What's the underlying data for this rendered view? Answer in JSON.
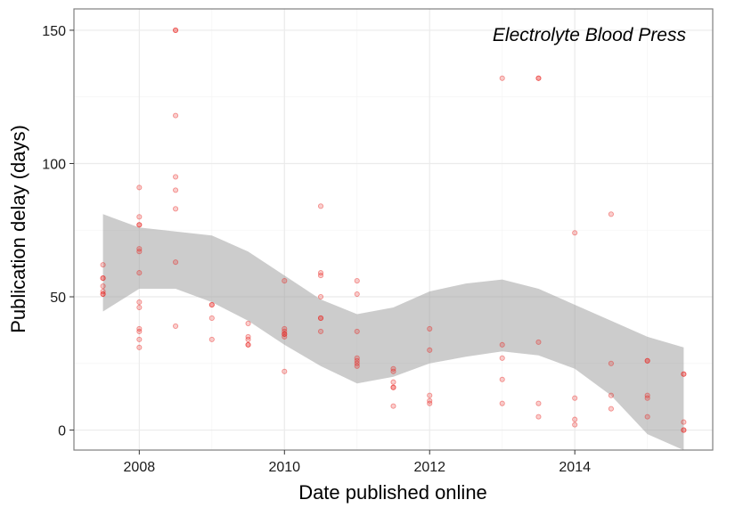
{
  "chart_data": {
    "type": "scatter",
    "title": "",
    "annotation": "Electrolyte Blood Press",
    "xlabel": "Date published online",
    "ylabel": "Publication delay (days)",
    "xlim": [
      2007.1,
      2015.9
    ],
    "ylim": [
      -7.5,
      158
    ],
    "x_ticks": [
      2008,
      2010,
      2012,
      2014
    ],
    "y_ticks": [
      0,
      50,
      100,
      150
    ],
    "grid": true,
    "legend": "none",
    "colors": {
      "points": "#e8211c",
      "ribbon": "#999999",
      "grid_major": "#ebebeb",
      "grid_minor": "#f5f5f5",
      "panel_border": "#7f7f7f"
    },
    "points": [
      {
        "x": 2007.5,
        "y": 62
      },
      {
        "x": 2007.5,
        "y": 57
      },
      {
        "x": 2007.5,
        "y": 57
      },
      {
        "x": 2007.5,
        "y": 54
      },
      {
        "x": 2007.5,
        "y": 52
      },
      {
        "x": 2007.5,
        "y": 51
      },
      {
        "x": 2007.5,
        "y": 51
      },
      {
        "x": 2008.0,
        "y": 91
      },
      {
        "x": 2008.0,
        "y": 80
      },
      {
        "x": 2008.0,
        "y": 77
      },
      {
        "x": 2008.0,
        "y": 77
      },
      {
        "x": 2008.0,
        "y": 68
      },
      {
        "x": 2008.0,
        "y": 67
      },
      {
        "x": 2008.0,
        "y": 59
      },
      {
        "x": 2008.0,
        "y": 48
      },
      {
        "x": 2008.0,
        "y": 46
      },
      {
        "x": 2008.0,
        "y": 38
      },
      {
        "x": 2008.0,
        "y": 37
      },
      {
        "x": 2008.0,
        "y": 34
      },
      {
        "x": 2008.0,
        "y": 31
      },
      {
        "x": 2008.5,
        "y": 150
      },
      {
        "x": 2008.5,
        "y": 150
      },
      {
        "x": 2008.5,
        "y": 118
      },
      {
        "x": 2008.5,
        "y": 95
      },
      {
        "x": 2008.5,
        "y": 90
      },
      {
        "x": 2008.5,
        "y": 83
      },
      {
        "x": 2008.5,
        "y": 63
      },
      {
        "x": 2008.5,
        "y": 39
      },
      {
        "x": 2009.0,
        "y": 47
      },
      {
        "x": 2009.0,
        "y": 47
      },
      {
        "x": 2009.0,
        "y": 42
      },
      {
        "x": 2009.0,
        "y": 34
      },
      {
        "x": 2009.5,
        "y": 40
      },
      {
        "x": 2009.5,
        "y": 35
      },
      {
        "x": 2009.5,
        "y": 34
      },
      {
        "x": 2009.5,
        "y": 32
      },
      {
        "x": 2009.5,
        "y": 32
      },
      {
        "x": 2010.0,
        "y": 56
      },
      {
        "x": 2010.0,
        "y": 38
      },
      {
        "x": 2010.0,
        "y": 37
      },
      {
        "x": 2010.0,
        "y": 36
      },
      {
        "x": 2010.0,
        "y": 36
      },
      {
        "x": 2010.0,
        "y": 35
      },
      {
        "x": 2010.0,
        "y": 22
      },
      {
        "x": 2010.5,
        "y": 84
      },
      {
        "x": 2010.5,
        "y": 59
      },
      {
        "x": 2010.5,
        "y": 58
      },
      {
        "x": 2010.5,
        "y": 50
      },
      {
        "x": 2010.5,
        "y": 42
      },
      {
        "x": 2010.5,
        "y": 42
      },
      {
        "x": 2010.5,
        "y": 37
      },
      {
        "x": 2011.0,
        "y": 56
      },
      {
        "x": 2011.0,
        "y": 51
      },
      {
        "x": 2011.0,
        "y": 37
      },
      {
        "x": 2011.0,
        "y": 27
      },
      {
        "x": 2011.0,
        "y": 26
      },
      {
        "x": 2011.0,
        "y": 25
      },
      {
        "x": 2011.0,
        "y": 24
      },
      {
        "x": 2011.5,
        "y": 23
      },
      {
        "x": 2011.5,
        "y": 22
      },
      {
        "x": 2011.5,
        "y": 18
      },
      {
        "x": 2011.5,
        "y": 16
      },
      {
        "x": 2011.5,
        "y": 16
      },
      {
        "x": 2011.5,
        "y": 9
      },
      {
        "x": 2012.0,
        "y": 38
      },
      {
        "x": 2012.0,
        "y": 30
      },
      {
        "x": 2012.0,
        "y": 13
      },
      {
        "x": 2012.0,
        "y": 11
      },
      {
        "x": 2012.0,
        "y": 10
      },
      {
        "x": 2013.0,
        "y": 132
      },
      {
        "x": 2013.0,
        "y": 32
      },
      {
        "x": 2013.0,
        "y": 27
      },
      {
        "x": 2013.0,
        "y": 19
      },
      {
        "x": 2013.0,
        "y": 10
      },
      {
        "x": 2013.5,
        "y": 132
      },
      {
        "x": 2013.5,
        "y": 132
      },
      {
        "x": 2013.5,
        "y": 33
      },
      {
        "x": 2013.5,
        "y": 10
      },
      {
        "x": 2013.5,
        "y": 5
      },
      {
        "x": 2014.0,
        "y": 74
      },
      {
        "x": 2014.0,
        "y": 12
      },
      {
        "x": 2014.0,
        "y": 4
      },
      {
        "x": 2014.0,
        "y": 2
      },
      {
        "x": 2014.5,
        "y": 81
      },
      {
        "x": 2014.5,
        "y": 25
      },
      {
        "x": 2014.5,
        "y": 13
      },
      {
        "x": 2014.5,
        "y": 8
      },
      {
        "x": 2015.0,
        "y": 26
      },
      {
        "x": 2015.0,
        "y": 26
      },
      {
        "x": 2015.0,
        "y": 13
      },
      {
        "x": 2015.0,
        "y": 12
      },
      {
        "x": 2015.0,
        "y": 5
      },
      {
        "x": 2015.5,
        "y": 21
      },
      {
        "x": 2015.5,
        "y": 21
      },
      {
        "x": 2015.5,
        "y": 3
      },
      {
        "x": 2015.5,
        "y": 0
      },
      {
        "x": 2015.5,
        "y": 0
      }
    ],
    "smooth_ribbon": {
      "x": [
        2007.5,
        2008.0,
        2008.5,
        2009.0,
        2009.5,
        2010.0,
        2010.5,
        2011.0,
        2011.5,
        2012.0,
        2012.5,
        2013.0,
        2013.5,
        2014.0,
        2014.5,
        2015.0,
        2015.5
      ],
      "upper": [
        81,
        76,
        74.5,
        73,
        67,
        58,
        49,
        43.5,
        46,
        52,
        55,
        56.5,
        53,
        47,
        41,
        35,
        31
      ],
      "lower": [
        44.5,
        53,
        53,
        48,
        41,
        32,
        24,
        17.5,
        20,
        25,
        27.5,
        29.5,
        28,
        23,
        13,
        -1.5,
        -12
      ]
    }
  }
}
